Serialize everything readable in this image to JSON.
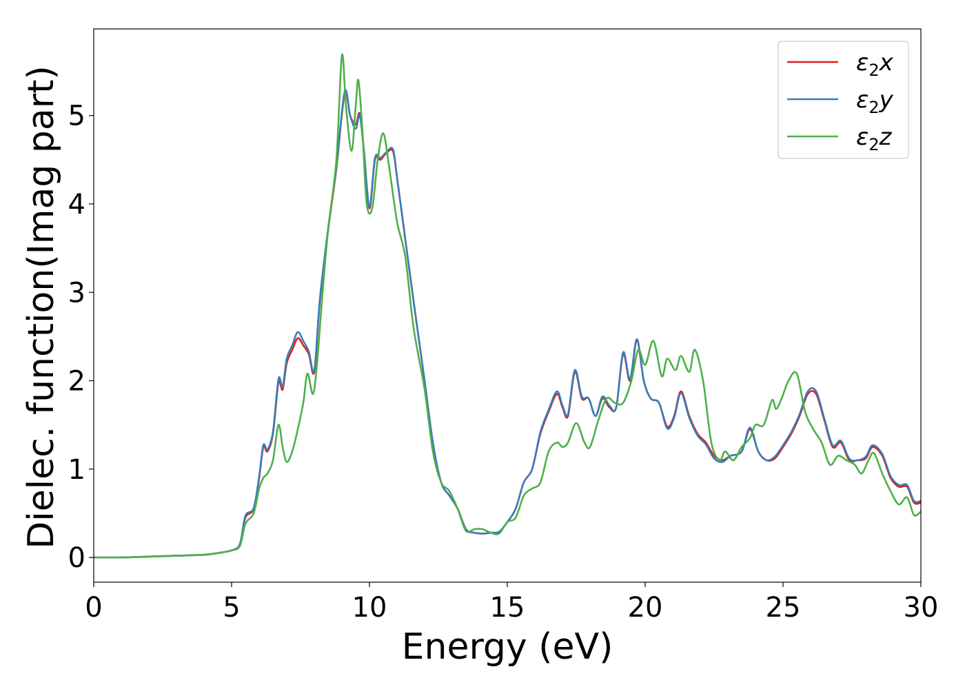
{
  "chart_data": {
    "type": "line",
    "xlabel": "Energy (eV)",
    "ylabel": "Dielec. function(Imag part)",
    "xlim": [
      0,
      30
    ],
    "ylim": [
      -0.28,
      5.98
    ],
    "xticks": [
      0,
      5,
      10,
      15,
      20,
      25,
      30
    ],
    "yticks": [
      0,
      1,
      2,
      3,
      4,
      5
    ],
    "grid": false,
    "legend_position": "top-right",
    "series": [
      {
        "name": "ε₂x",
        "legend_base": "ε",
        "legend_sub": "2",
        "legend_suffix": "x",
        "color": "#e41a1c",
        "x": [
          0,
          1,
          2,
          3,
          4,
          4.5,
          5,
          5.3,
          5.5,
          5.8,
          6.0,
          6.15,
          6.3,
          6.5,
          6.7,
          6.85,
          7.0,
          7.2,
          7.4,
          7.6,
          7.8,
          8.0,
          8.2,
          8.5,
          8.8,
          9.1,
          9.3,
          9.5,
          9.65,
          9.8,
          10.0,
          10.2,
          10.4,
          10.6,
          10.85,
          11.0,
          11.3,
          11.6,
          12.0,
          12.3,
          12.6,
          12.9,
          13.2,
          13.5,
          13.8,
          14.1,
          14.4,
          14.7,
          15.0,
          15.3,
          15.6,
          15.9,
          16.2,
          16.5,
          16.8,
          17.0,
          17.2,
          17.45,
          17.7,
          17.95,
          18.2,
          18.45,
          18.7,
          18.95,
          19.2,
          19.45,
          19.7,
          19.95,
          20.2,
          20.5,
          20.8,
          21.05,
          21.3,
          21.6,
          21.9,
          22.2,
          22.5,
          22.8,
          23.1,
          23.5,
          23.8,
          24.1,
          24.4,
          24.7,
          25.0,
          25.3,
          25.6,
          25.9,
          26.2,
          26.5,
          26.8,
          27.1,
          27.4,
          27.7,
          28.0,
          28.25,
          28.6,
          28.9,
          29.2,
          29.5,
          29.75,
          30.0
        ],
        "y": [
          0.0,
          0.0,
          0.01,
          0.02,
          0.03,
          0.05,
          0.08,
          0.15,
          0.45,
          0.55,
          0.9,
          1.25,
          1.2,
          1.4,
          1.98,
          1.9,
          2.2,
          2.35,
          2.48,
          2.4,
          2.3,
          2.1,
          2.9,
          3.7,
          4.4,
          5.25,
          5.0,
          4.9,
          5.02,
          4.6,
          3.95,
          4.5,
          4.5,
          4.57,
          4.6,
          4.3,
          3.6,
          2.9,
          2.0,
          1.3,
          0.85,
          0.7,
          0.55,
          0.32,
          0.28,
          0.27,
          0.28,
          0.29,
          0.4,
          0.55,
          0.85,
          1.0,
          1.4,
          1.65,
          1.85,
          1.7,
          1.6,
          2.1,
          1.8,
          1.8,
          1.6,
          1.8,
          1.7,
          1.7,
          2.3,
          2.0,
          2.45,
          2.0,
          1.8,
          1.75,
          1.48,
          1.6,
          1.88,
          1.6,
          1.4,
          1.3,
          1.15,
          1.1,
          1.15,
          1.2,
          1.45,
          1.2,
          1.1,
          1.12,
          1.25,
          1.4,
          1.6,
          1.85,
          1.85,
          1.55,
          1.25,
          1.3,
          1.1,
          1.1,
          1.12,
          1.25,
          1.15,
          0.9,
          0.8,
          0.8,
          0.62,
          0.62
        ]
      },
      {
        "name": "ε₂y",
        "legend_base": "ε",
        "legend_sub": "2",
        "legend_suffix": "y",
        "color": "#377eb8",
        "x": [
          0,
          1,
          2,
          3,
          4,
          4.5,
          5,
          5.3,
          5.5,
          5.8,
          6.0,
          6.15,
          6.3,
          6.5,
          6.7,
          6.85,
          7.0,
          7.2,
          7.4,
          7.6,
          7.8,
          8.0,
          8.2,
          8.5,
          8.8,
          9.1,
          9.3,
          9.5,
          9.65,
          9.8,
          10.0,
          10.2,
          10.4,
          10.6,
          10.85,
          11.0,
          11.3,
          11.6,
          12.0,
          12.3,
          12.6,
          12.9,
          13.2,
          13.5,
          13.8,
          14.1,
          14.4,
          14.7,
          15.0,
          15.3,
          15.6,
          15.9,
          16.2,
          16.5,
          16.8,
          17.0,
          17.2,
          17.45,
          17.7,
          17.95,
          18.2,
          18.45,
          18.7,
          18.95,
          19.2,
          19.45,
          19.7,
          19.95,
          20.2,
          20.5,
          20.8,
          21.05,
          21.3,
          21.6,
          21.9,
          22.2,
          22.5,
          22.8,
          23.1,
          23.5,
          23.8,
          24.1,
          24.4,
          24.7,
          25.0,
          25.3,
          25.6,
          25.9,
          26.2,
          26.5,
          26.8,
          27.1,
          27.4,
          27.7,
          28.0,
          28.25,
          28.6,
          28.9,
          29.2,
          29.5,
          29.75,
          30.0
        ],
        "y": [
          0.0,
          0.0,
          0.01,
          0.02,
          0.03,
          0.05,
          0.08,
          0.15,
          0.47,
          0.56,
          0.92,
          1.27,
          1.22,
          1.42,
          2.02,
          1.93,
          2.25,
          2.4,
          2.55,
          2.45,
          2.33,
          2.12,
          2.92,
          3.72,
          4.42,
          5.27,
          5.0,
          4.85,
          5.0,
          4.6,
          3.97,
          4.52,
          4.52,
          4.58,
          4.62,
          4.3,
          3.6,
          2.9,
          2.0,
          1.3,
          0.85,
          0.7,
          0.55,
          0.32,
          0.28,
          0.27,
          0.28,
          0.29,
          0.4,
          0.55,
          0.85,
          1.0,
          1.42,
          1.67,
          1.88,
          1.72,
          1.62,
          2.12,
          1.82,
          1.8,
          1.6,
          1.82,
          1.72,
          1.7,
          2.32,
          2.02,
          2.47,
          2.0,
          1.8,
          1.75,
          1.46,
          1.58,
          1.86,
          1.58,
          1.38,
          1.28,
          1.12,
          1.08,
          1.15,
          1.2,
          1.47,
          1.2,
          1.1,
          1.14,
          1.27,
          1.42,
          1.62,
          1.88,
          1.88,
          1.57,
          1.27,
          1.32,
          1.12,
          1.1,
          1.14,
          1.27,
          1.17,
          0.92,
          0.82,
          0.82,
          0.64,
          0.64
        ]
      },
      {
        "name": "ε₂z",
        "legend_base": "ε",
        "legend_sub": "2",
        "legend_suffix": "z",
        "color": "#4daf4a",
        "x": [
          0,
          1,
          2,
          3,
          4,
          4.5,
          5,
          5.3,
          5.5,
          5.8,
          6.0,
          6.15,
          6.3,
          6.5,
          6.7,
          6.85,
          7.0,
          7.2,
          7.4,
          7.6,
          7.75,
          7.95,
          8.1,
          8.3,
          8.5,
          8.8,
          9.0,
          9.15,
          9.35,
          9.5,
          9.6,
          9.75,
          9.9,
          10.1,
          10.3,
          10.5,
          10.7,
          11.0,
          11.3,
          11.6,
          12.0,
          12.3,
          12.6,
          12.9,
          13.2,
          13.5,
          13.8,
          14.1,
          14.4,
          14.7,
          15.0,
          15.3,
          15.6,
          15.9,
          16.2,
          16.5,
          16.8,
          17.0,
          17.2,
          17.5,
          17.8,
          18.0,
          18.3,
          18.6,
          18.9,
          19.2,
          19.5,
          19.75,
          20.0,
          20.3,
          20.6,
          20.8,
          21.1,
          21.3,
          21.6,
          21.8,
          22.1,
          22.4,
          22.7,
          22.9,
          23.2,
          23.5,
          23.8,
          24.0,
          24.3,
          24.6,
          24.75,
          24.95,
          25.2,
          25.5,
          25.8,
          26.1,
          26.4,
          26.7,
          27.0,
          27.3,
          27.6,
          27.85,
          28.1,
          28.3,
          28.6,
          28.9,
          29.2,
          29.5,
          29.75,
          30.0
        ],
        "y": [
          0.0,
          0.0,
          0.01,
          0.02,
          0.03,
          0.05,
          0.08,
          0.13,
          0.38,
          0.5,
          0.78,
          0.9,
          0.95,
          1.1,
          1.5,
          1.25,
          1.08,
          1.2,
          1.45,
          1.75,
          2.08,
          1.85,
          2.2,
          3.0,
          3.7,
          4.5,
          5.68,
          5.1,
          4.6,
          5.1,
          5.4,
          4.8,
          4.0,
          3.95,
          4.5,
          4.8,
          4.45,
          3.8,
          3.4,
          2.6,
          1.9,
          1.2,
          0.85,
          0.75,
          0.55,
          0.3,
          0.32,
          0.32,
          0.28,
          0.27,
          0.4,
          0.45,
          0.7,
          0.78,
          0.85,
          1.2,
          1.3,
          1.25,
          1.3,
          1.52,
          1.3,
          1.25,
          1.55,
          1.8,
          1.75,
          1.75,
          2.0,
          2.35,
          2.18,
          2.45,
          2.05,
          2.25,
          2.12,
          2.28,
          2.1,
          2.35,
          2.0,
          1.3,
          1.1,
          1.2,
          1.1,
          1.25,
          1.35,
          1.5,
          1.5,
          1.78,
          1.68,
          1.8,
          2.0,
          2.08,
          1.65,
          1.45,
          1.3,
          1.05,
          1.15,
          1.1,
          1.05,
          0.95,
          1.1,
          1.18,
          0.95,
          0.75,
          0.6,
          0.68,
          0.48,
          0.52
        ]
      }
    ]
  }
}
